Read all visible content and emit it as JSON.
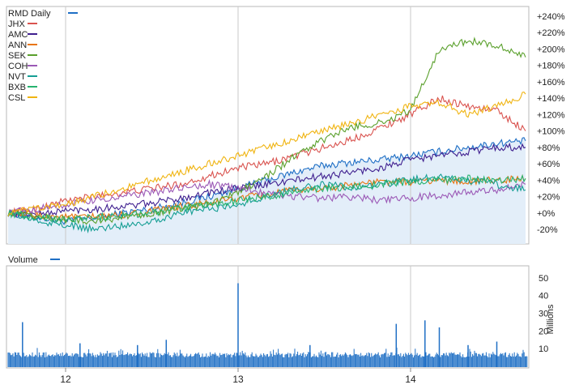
{
  "chart_data": [
    {
      "type": "line",
      "title": "RMD Daily",
      "xlabel": "",
      "ylabel": "",
      "x_ticks": [
        "12",
        "13",
        "14"
      ],
      "y_ticks": [
        "+240%",
        "+220%",
        "+200%",
        "+180%",
        "+160%",
        "+140%",
        "+120%",
        "+100%",
        "+80%",
        "+60%",
        "+40%",
        "+20%",
        "+0%",
        "-20%"
      ],
      "ylim": [
        -30,
        240
      ],
      "grid": true,
      "legend_position": "top-left",
      "x": [
        "2011-09",
        "2011-11",
        "2012-01",
        "2012-03",
        "2012-05",
        "2012-07",
        "2012-09",
        "2012-11",
        "2013-01",
        "2013-03",
        "2013-05",
        "2013-07",
        "2013-09",
        "2013-11",
        "2014-01",
        "2014-03",
        "2014-05",
        "2014-07",
        "2014-09"
      ],
      "series": [
        {
          "name": "RMD",
          "color": "#1f6fc5",
          "fill": "#e6f0fa",
          "values": [
            0,
            -5,
            -10,
            -6,
            0,
            5,
            12,
            20,
            30,
            40,
            50,
            58,
            62,
            65,
            70,
            75,
            80,
            85,
            88
          ]
        },
        {
          "name": "JHX",
          "color": "#d9534f",
          "values": [
            0,
            5,
            15,
            20,
            25,
            30,
            35,
            45,
            55,
            60,
            70,
            80,
            90,
            105,
            120,
            140,
            130,
            125,
            100
          ]
        },
        {
          "name": "AMC",
          "color": "#3f1f8f",
          "values": [
            0,
            -2,
            3,
            5,
            8,
            12,
            18,
            25,
            30,
            35,
            40,
            45,
            50,
            55,
            65,
            70,
            75,
            80,
            80
          ]
        },
        {
          "name": "ANN",
          "color": "#e87511",
          "values": [
            0,
            -3,
            -5,
            -5,
            -2,
            2,
            8,
            12,
            18,
            22,
            28,
            30,
            35,
            38,
            38,
            40,
            38,
            40,
            42
          ]
        },
        {
          "name": "SEK",
          "color": "#5aa02c",
          "values": [
            0,
            -5,
            -8,
            -10,
            -5,
            0,
            5,
            10,
            25,
            45,
            70,
            90,
            105,
            110,
            125,
            200,
            210,
            205,
            190
          ]
        },
        {
          "name": "COH",
          "color": "#9b59b6",
          "values": [
            0,
            5,
            10,
            15,
            20,
            25,
            30,
            35,
            30,
            25,
            20,
            18,
            20,
            15,
            18,
            22,
            25,
            28,
            35
          ]
        },
        {
          "name": "NVT",
          "color": "#159e94",
          "values": [
            0,
            -10,
            -15,
            -20,
            -15,
            -10,
            0,
            5,
            10,
            20,
            30,
            35,
            30,
            35,
            40,
            45,
            40,
            35,
            28
          ]
        },
        {
          "name": "BXB",
          "color": "#27b36f",
          "values": [
            0,
            -5,
            -8,
            -5,
            -3,
            0,
            5,
            10,
            15,
            20,
            25,
            30,
            32,
            35,
            38,
            40,
            42,
            40,
            42
          ]
        },
        {
          "name": "CSL",
          "color": "#f0b411",
          "values": [
            0,
            5,
            10,
            20,
            30,
            40,
            50,
            60,
            70,
            80,
            90,
            100,
            110,
            120,
            130,
            135,
            120,
            130,
            145
          ]
        }
      ]
    },
    {
      "type": "bar",
      "title": "Volume",
      "ylabel": "Millions",
      "y_ticks": [
        "50",
        "40",
        "30",
        "20",
        "10"
      ],
      "ylim": [
        0,
        55
      ],
      "color": "#1f6fc5",
      "spikes": [
        {
          "x": "2011-10",
          "value": 25
        },
        {
          "x": "2012-02",
          "value": 13
        },
        {
          "x": "2012-06",
          "value": 12
        },
        {
          "x": "2012-08",
          "value": 15
        },
        {
          "x": "2013-01",
          "value": 47
        },
        {
          "x": "2013-06",
          "value": 12
        },
        {
          "x": "2013-12",
          "value": 24
        },
        {
          "x": "2014-02",
          "value": 26
        },
        {
          "x": "2014-03",
          "value": 22
        },
        {
          "x": "2014-05",
          "value": 12
        },
        {
          "x": "2014-07",
          "value": 14
        }
      ],
      "baseline": 5
    }
  ]
}
